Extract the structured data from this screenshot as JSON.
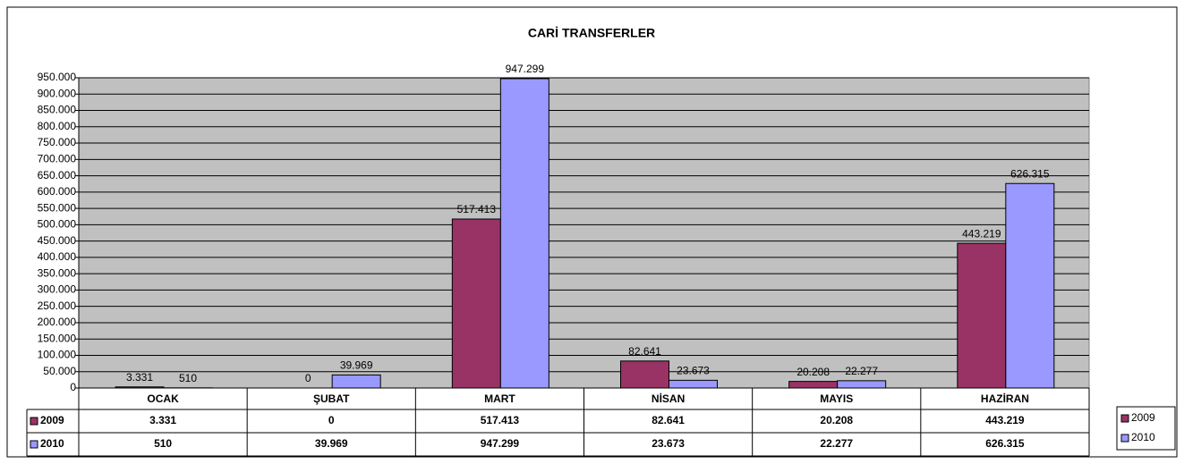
{
  "chart_data": {
    "type": "bar",
    "title": "CARİ TRANSFERLER",
    "categories": [
      "OCAK",
      "ŞUBAT",
      "MART",
      "NİSAN",
      "MAYIS",
      "HAZİRAN"
    ],
    "series": [
      {
        "name": "2009",
        "color": "#993366",
        "values": [
          3331,
          0,
          517413,
          82641,
          20208,
          443219
        ],
        "value_labels": [
          "3.331",
          "0",
          "517.413",
          "82.641",
          "20.208",
          "443.219"
        ]
      },
      {
        "name": "2010",
        "color": "#9999ff",
        "values": [
          510,
          39969,
          947299,
          23673,
          22277,
          626315
        ],
        "value_labels": [
          "510",
          "39.969",
          "947.299",
          "23.673",
          "22.277",
          "626.315"
        ]
      }
    ],
    "ylim": [
      0,
      950000
    ],
    "yticks": [
      0,
      {
        "value": 50000,
        "label": "50.000"
      },
      {
        "value": 100000,
        "label": "100.000"
      },
      {
        "value": 150000,
        "label": "150.000"
      },
      {
        "value": 200000,
        "label": "200.000"
      },
      {
        "value": 250000,
        "label": "250.000"
      },
      {
        "value": 300000,
        "label": "300.000"
      },
      {
        "value": 350000,
        "label": "350.000"
      },
      {
        "value": 400000,
        "label": "400.000"
      },
      {
        "value": 450000,
        "label": "450.000"
      },
      {
        "value": 500000,
        "label": "500.000"
      },
      {
        "value": 550000,
        "label": "550.000"
      },
      {
        "value": 600000,
        "label": "600.000"
      },
      {
        "value": 650000,
        "label": "650.000"
      },
      {
        "value": 700000,
        "label": "700.000"
      },
      {
        "value": 750000,
        "label": "750.000"
      },
      {
        "value": 800000,
        "label": "800.000"
      },
      {
        "value": 850000,
        "label": "850.000"
      },
      {
        "value": 900000,
        "label": "900.000"
      },
      {
        "value": 950000,
        "label": "950.000"
      }
    ],
    "grid": true,
    "legend": "right",
    "plot_background": "#c0c0c0"
  }
}
